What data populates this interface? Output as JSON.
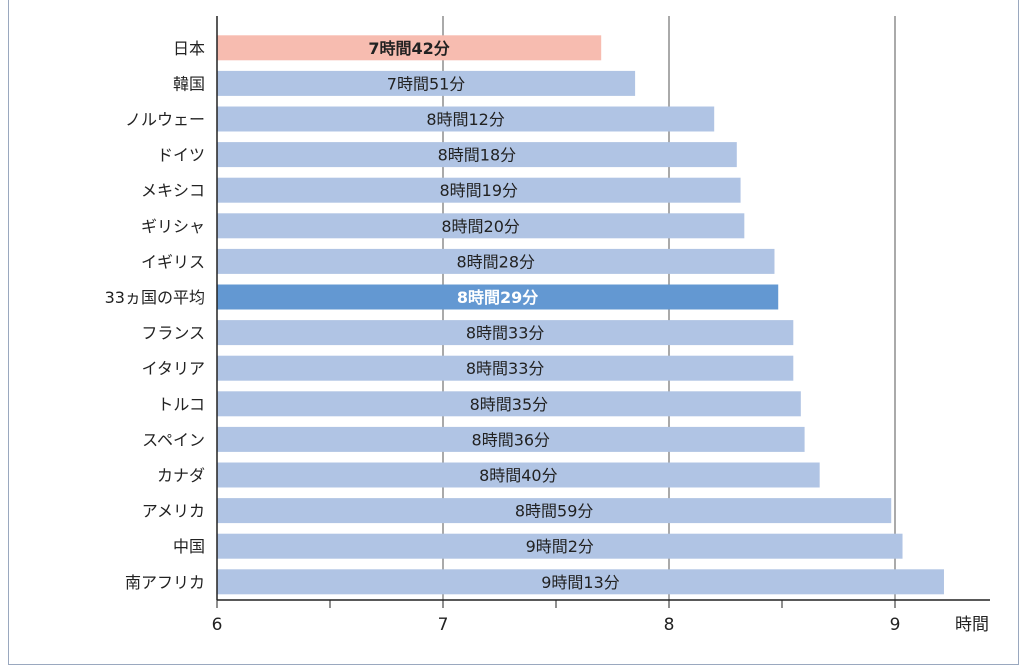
{
  "chart_data": {
    "type": "bar",
    "orientation": "horizontal",
    "categories": [
      "日本",
      "韓国",
      "ノルウェー",
      "ドイツ",
      "メキシコ",
      "ギリシャ",
      "イギリス",
      "33ヵ国の平均",
      "フランス",
      "イタリア",
      "トルコ",
      "スペイン",
      "カナダ",
      "アメリカ",
      "中国",
      "南アフリカ"
    ],
    "values": [
      7.7,
      7.85,
      8.2,
      8.3,
      8.3167,
      8.3333,
      8.4667,
      8.4833,
      8.55,
      8.55,
      8.5833,
      8.6,
      8.6667,
      8.9833,
      9.0333,
      9.2167
    ],
    "data_labels": [
      "7時間42分",
      "7時間51分",
      "8時間12分",
      "8時間18分",
      "8時間19分",
      "8時間20分",
      "8時間28分",
      "8時間29分",
      "8時間33分",
      "8時間33分",
      "8時間35分",
      "8時間36分",
      "8時間40分",
      "8時間59分",
      "9時間2分",
      "9時間13分"
    ],
    "highlight": {
      "日本": "#f7bcb0",
      "33ヵ国の平均": "#6398d2"
    },
    "bar_color": "#b0c4e4",
    "xlim": [
      6,
      9.4
    ],
    "x_ticks": [
      6,
      7,
      8,
      9
    ],
    "xlabel": "時間",
    "grid": "vertical"
  }
}
